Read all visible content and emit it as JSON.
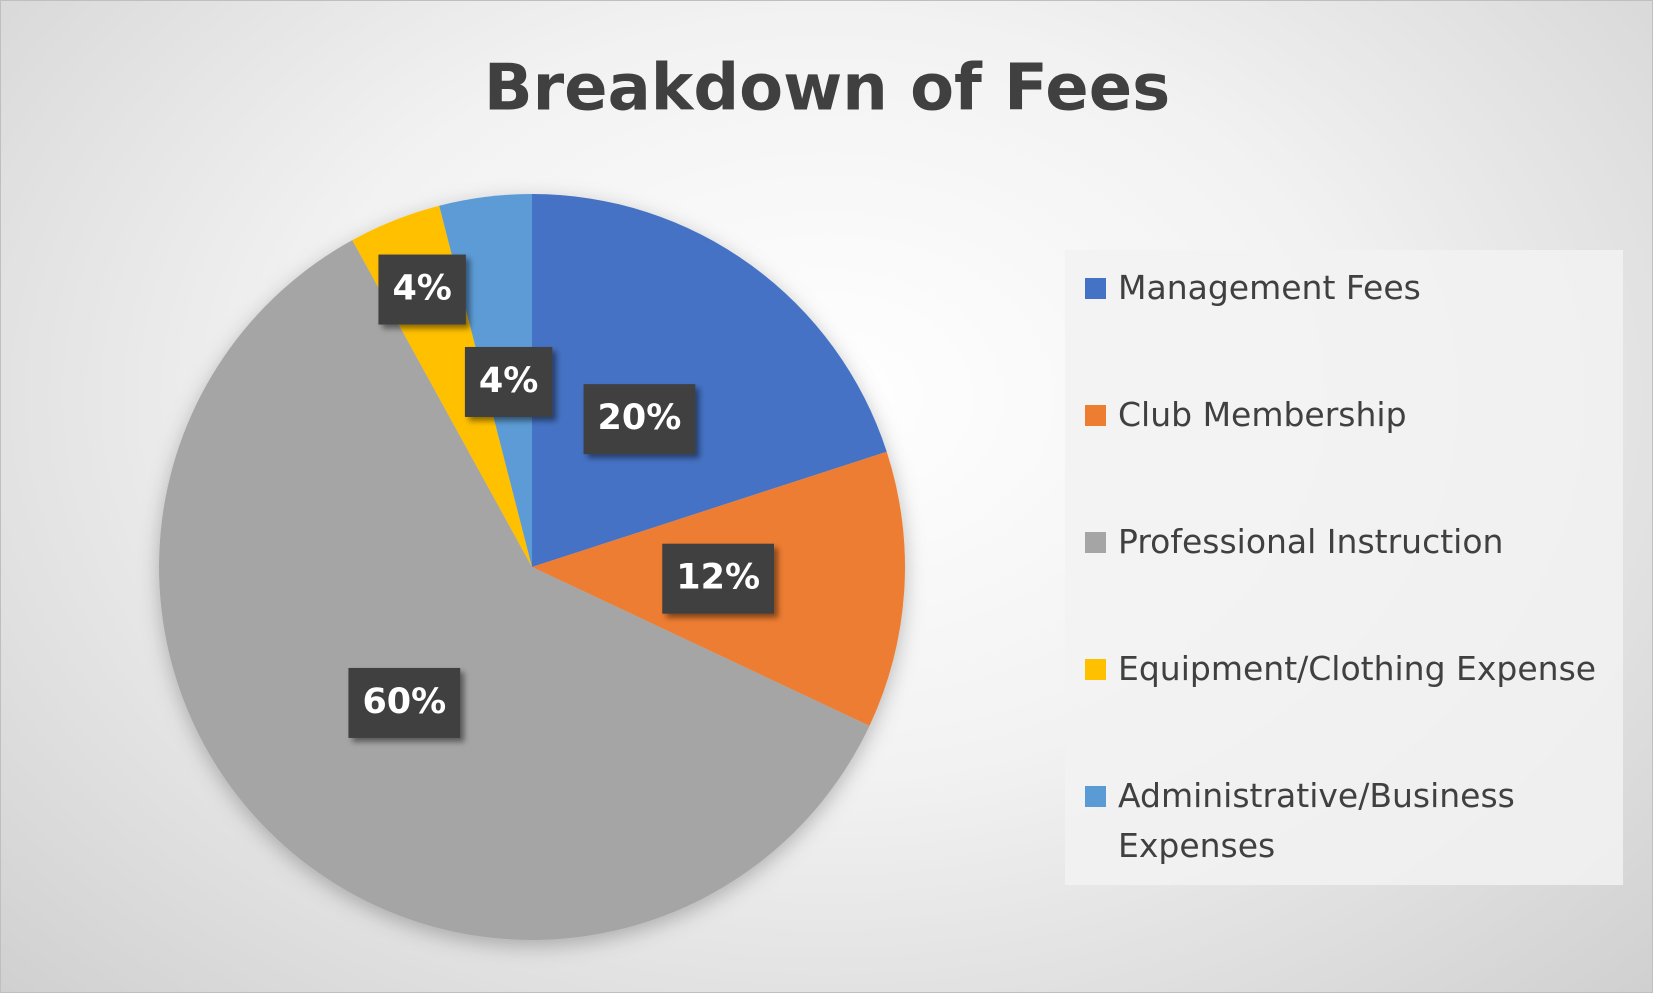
{
  "chart_data": {
    "type": "pie",
    "title": "Breakdown of Fees",
    "categories": [
      "Management Fees",
      "Club Membership",
      "Professional Instruction",
      "Equipment/Clothing Expense",
      "Administrative/Business Expenses"
    ],
    "values": [
      20,
      12,
      60,
      4,
      4
    ],
    "value_labels": [
      "20%",
      "12%",
      "60%",
      "4%",
      "4%"
    ],
    "colors": [
      "#4472c4",
      "#ed7d31",
      "#a5a5a5",
      "#ffc000",
      "#5b9bd5"
    ],
    "legend": "right"
  }
}
